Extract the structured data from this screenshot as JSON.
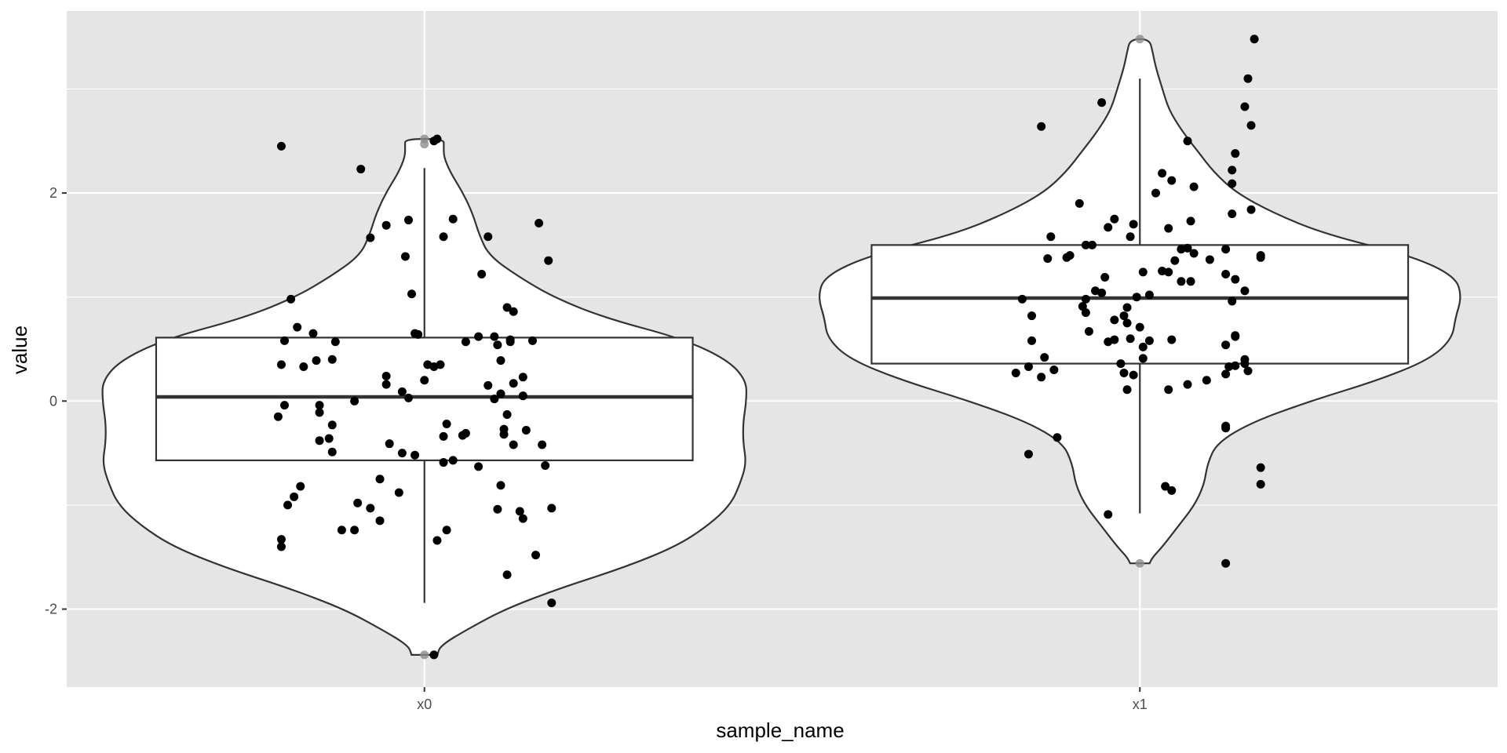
{
  "chart_data": {
    "type": "violin",
    "xlabel": "sample_name",
    "ylabel": "value",
    "categories": [
      "x0",
      "x1"
    ],
    "ylim": [
      -2.75,
      3.75
    ],
    "yticks": [
      -2,
      0,
      2
    ],
    "ytick_labels": [
      "-2",
      "0",
      "2"
    ],
    "grid": true,
    "colors": {
      "panel": "#e5e5e5",
      "gridline": "#ffffff",
      "violin_fill": "#ffffff",
      "stroke": "#333333",
      "point": "#000000",
      "outlier": "#8c8c8c"
    },
    "series": [
      {
        "category": "x0",
        "box": {
          "q1": -0.57,
          "median": 0.04,
          "q3": 0.61,
          "whisker_low": -1.94,
          "whisker_high": 2.24
        },
        "outliers": [
          2.52,
          2.47,
          -2.44
        ],
        "violin_range": [
          -2.44,
          2.52
        ],
        "density_profile": [
          [
            -2.44,
            0.04
          ],
          [
            -2.35,
            0.05
          ],
          [
            -2.2,
            0.13
          ],
          [
            -2.0,
            0.25
          ],
          [
            -1.8,
            0.42
          ],
          [
            -1.6,
            0.62
          ],
          [
            -1.4,
            0.78
          ],
          [
            -1.2,
            0.88
          ],
          [
            -1.0,
            0.95
          ],
          [
            -0.8,
            0.98
          ],
          [
            -0.6,
            1.0
          ],
          [
            -0.4,
            0.99
          ],
          [
            -0.2,
            0.99
          ],
          [
            0.0,
            1.0
          ],
          [
            0.2,
            1.0
          ],
          [
            0.4,
            0.94
          ],
          [
            0.6,
            0.8
          ],
          [
            0.8,
            0.56
          ],
          [
            1.0,
            0.4
          ],
          [
            1.2,
            0.29
          ],
          [
            1.4,
            0.2
          ],
          [
            1.6,
            0.17
          ],
          [
            1.8,
            0.15
          ],
          [
            2.0,
            0.12
          ],
          [
            2.2,
            0.08
          ],
          [
            2.35,
            0.06
          ],
          [
            2.45,
            0.06
          ],
          [
            2.52,
            0.06
          ]
        ],
        "points": [
          [
            -0.45,
            2.45
          ],
          [
            -0.2,
            2.23
          ],
          [
            -0.12,
            1.69
          ],
          [
            -0.17,
            1.57
          ],
          [
            0.03,
            2.5
          ],
          [
            0.04,
            2.52
          ],
          [
            0.09,
            1.75
          ],
          [
            0.06,
            1.58
          ],
          [
            -0.05,
            1.74
          ],
          [
            0.2,
            1.58
          ],
          [
            0.18,
            1.22
          ],
          [
            0.36,
            1.71
          ],
          [
            0.39,
            1.35
          ],
          [
            -0.06,
            1.39
          ],
          [
            -0.04,
            1.03
          ],
          [
            -0.42,
            0.98
          ],
          [
            -0.4,
            0.71
          ],
          [
            -0.35,
            0.65
          ],
          [
            -0.44,
            0.58
          ],
          [
            -0.28,
            0.57
          ],
          [
            -0.38,
            0.33
          ],
          [
            -0.34,
            0.39
          ],
          [
            -0.29,
            0.4
          ],
          [
            -0.45,
            0.35
          ],
          [
            -0.02,
            0.64
          ],
          [
            -0.03,
            0.65
          ],
          [
            0.22,
            0.62
          ],
          [
            0.13,
            0.57
          ],
          [
            0.17,
            0.62
          ],
          [
            0.27,
            0.59
          ],
          [
            0.26,
            0.9
          ],
          [
            0.28,
            0.86
          ],
          [
            0.34,
            0.58
          ],
          [
            0.27,
            0.57
          ],
          [
            0.23,
            0.54
          ],
          [
            0.24,
            0.39
          ],
          [
            -0.12,
            0.24
          ],
          [
            -0.12,
            0.16
          ],
          [
            -0.07,
            0.09
          ],
          [
            -0.05,
            0.03
          ],
          [
            0.01,
            0.35
          ],
          [
            0.03,
            0.33
          ],
          [
            0.05,
            0.35
          ],
          [
            0.0,
            0.2
          ],
          [
            0.2,
            0.15
          ],
          [
            0.31,
            0.23
          ],
          [
            0.28,
            0.17
          ],
          [
            0.31,
            0.05
          ],
          [
            0.22,
            0.02
          ],
          [
            0.24,
            0.07
          ],
          [
            -0.22,
            0.0
          ],
          [
            -0.46,
            -0.15
          ],
          [
            -0.44,
            -0.04
          ],
          [
            -0.33,
            -0.04
          ],
          [
            -0.33,
            -0.11
          ],
          [
            -0.29,
            -0.23
          ],
          [
            -0.3,
            -0.36
          ],
          [
            -0.33,
            -0.38
          ],
          [
            -0.29,
            -0.49
          ],
          [
            -0.11,
            -0.41
          ],
          [
            -0.07,
            -0.5
          ],
          [
            -0.03,
            -0.52
          ],
          [
            0.07,
            -0.22
          ],
          [
            0.06,
            -0.34
          ],
          [
            0.06,
            -0.59
          ],
          [
            0.09,
            -0.57
          ],
          [
            0.13,
            -0.31
          ],
          [
            0.25,
            -0.32
          ],
          [
            0.25,
            -0.27
          ],
          [
            0.32,
            -0.28
          ],
          [
            0.37,
            -0.42
          ],
          [
            0.28,
            -0.42
          ],
          [
            0.26,
            -0.13
          ],
          [
            0.38,
            -0.62
          ],
          [
            0.17,
            -0.63
          ],
          [
            -0.21,
            -0.98
          ],
          [
            -0.17,
            -1.03
          ],
          [
            -0.14,
            -0.75
          ],
          [
            -0.08,
            -0.88
          ],
          [
            -0.39,
            -0.82
          ],
          [
            -0.41,
            -0.92
          ],
          [
            -0.43,
            -1.0
          ],
          [
            -0.45,
            -1.33
          ],
          [
            -0.45,
            -1.4
          ],
          [
            -0.22,
            -1.24
          ],
          [
            -0.26,
            -1.24
          ],
          [
            -0.14,
            -1.15
          ],
          [
            0.04,
            -1.34
          ],
          [
            0.07,
            -1.24
          ],
          [
            0.12,
            -0.33
          ],
          [
            0.3,
            -1.06
          ],
          [
            0.31,
            -1.13
          ],
          [
            0.24,
            -0.81
          ],
          [
            0.23,
            -1.04
          ],
          [
            0.35,
            -1.48
          ],
          [
            0.26,
            -1.67
          ],
          [
            0.4,
            -1.94
          ],
          [
            0.03,
            -2.44
          ],
          [
            0.4,
            -1.03
          ]
        ]
      },
      {
        "category": "x1",
        "box": {
          "q1": 0.36,
          "median": 0.99,
          "q3": 1.5,
          "whisker_low": -1.08,
          "whisker_high": 3.1
        },
        "outliers": [
          3.48,
          -1.56
        ],
        "violin_range": [
          -1.56,
          3.48
        ],
        "density_profile": [
          [
            -1.56,
            0.03
          ],
          [
            -1.5,
            0.04
          ],
          [
            -1.4,
            0.07
          ],
          [
            -1.2,
            0.12
          ],
          [
            -1.0,
            0.17
          ],
          [
            -0.8,
            0.2
          ],
          [
            -0.6,
            0.21
          ],
          [
            -0.4,
            0.24
          ],
          [
            -0.2,
            0.35
          ],
          [
            0.0,
            0.53
          ],
          [
            0.2,
            0.74
          ],
          [
            0.4,
            0.9
          ],
          [
            0.6,
            0.97
          ],
          [
            0.8,
            0.98
          ],
          [
            1.0,
            1.0
          ],
          [
            1.2,
            0.98
          ],
          [
            1.4,
            0.84
          ],
          [
            1.6,
            0.58
          ],
          [
            1.8,
            0.42
          ],
          [
            2.0,
            0.3
          ],
          [
            2.2,
            0.23
          ],
          [
            2.4,
            0.18
          ],
          [
            2.6,
            0.13
          ],
          [
            2.8,
            0.09
          ],
          [
            3.0,
            0.07
          ],
          [
            3.2,
            0.05
          ],
          [
            3.35,
            0.04
          ],
          [
            3.48,
            0.03
          ]
        ],
        "points": [
          [
            0.36,
            3.48
          ],
          [
            0.34,
            3.1
          ],
          [
            -0.12,
            2.87
          ],
          [
            -0.31,
            2.64
          ],
          [
            0.33,
            2.83
          ],
          [
            0.35,
            2.65
          ],
          [
            0.15,
            2.5
          ],
          [
            0.3,
            2.38
          ],
          [
            0.29,
            2.22
          ],
          [
            0.29,
            2.09
          ],
          [
            0.07,
            2.19
          ],
          [
            0.1,
            2.12
          ],
          [
            0.17,
            2.06
          ],
          [
            0.05,
            2.0
          ],
          [
            0.35,
            1.84
          ],
          [
            0.29,
            1.8
          ],
          [
            -0.19,
            1.9
          ],
          [
            -0.08,
            1.75
          ],
          [
            -0.1,
            1.67
          ],
          [
            -0.02,
            1.7
          ],
          [
            -0.03,
            1.58
          ],
          [
            0.09,
            1.66
          ],
          [
            0.16,
            1.73
          ],
          [
            -0.28,
            1.58
          ],
          [
            -0.23,
            1.38
          ],
          [
            -0.22,
            1.4
          ],
          [
            -0.15,
            1.5
          ],
          [
            -0.17,
            1.5
          ],
          [
            -0.29,
            1.37
          ],
          [
            0.13,
            1.46
          ],
          [
            0.15,
            1.47
          ],
          [
            0.17,
            1.42
          ],
          [
            0.22,
            1.36
          ],
          [
            0.11,
            1.35
          ],
          [
            0.07,
            1.25
          ],
          [
            0.13,
            1.15
          ],
          [
            0.16,
            1.15
          ],
          [
            0.09,
            1.24
          ],
          [
            0.27,
            1.46
          ],
          [
            0.27,
            1.22
          ],
          [
            0.3,
            1.17
          ],
          [
            0.33,
            1.06
          ],
          [
            0.38,
            1.4
          ],
          [
            0.38,
            1.38
          ],
          [
            0.29,
            0.96
          ],
          [
            -0.37,
            0.98
          ],
          [
            -0.34,
            0.82
          ],
          [
            -0.17,
            0.98
          ],
          [
            -0.14,
            1.06
          ],
          [
            -0.11,
            1.19
          ],
          [
            -0.12,
            1.04
          ],
          [
            -0.05,
            0.82
          ],
          [
            -0.04,
            0.9
          ],
          [
            -0.01,
            1.0
          ],
          [
            0.01,
            1.24
          ],
          [
            0.03,
            1.02
          ],
          [
            -0.18,
            0.91
          ],
          [
            -0.17,
            0.85
          ],
          [
            -0.08,
            0.78
          ],
          [
            -0.04,
            0.75
          ],
          [
            0.0,
            0.71
          ],
          [
            -0.08,
            0.59
          ],
          [
            -0.1,
            0.57
          ],
          [
            -0.03,
            0.6
          ],
          [
            0.03,
            0.58
          ],
          [
            0.1,
            0.59
          ],
          [
            -0.16,
            0.67
          ],
          [
            0.01,
            0.52
          ],
          [
            0.01,
            0.41
          ],
          [
            -0.34,
            0.58
          ],
          [
            -0.35,
            0.33
          ],
          [
            -0.39,
            0.27
          ],
          [
            -0.31,
            0.23
          ],
          [
            -0.3,
            0.42
          ],
          [
            -0.27,
            0.3
          ],
          [
            -0.06,
            0.36
          ],
          [
            -0.05,
            0.27
          ],
          [
            -0.02,
            0.25
          ],
          [
            -0.04,
            0.11
          ],
          [
            0.09,
            0.11
          ],
          [
            0.15,
            0.16
          ],
          [
            0.21,
            0.2
          ],
          [
            0.27,
            0.26
          ],
          [
            0.28,
            0.33
          ],
          [
            0.3,
            0.34
          ],
          [
            0.27,
            0.54
          ],
          [
            0.3,
            0.62
          ],
          [
            0.3,
            0.63
          ],
          [
            0.33,
            0.4
          ],
          [
            0.34,
            0.29
          ],
          [
            0.33,
            0.36
          ],
          [
            -0.35,
            -0.51
          ],
          [
            -0.26,
            -0.35
          ],
          [
            -0.1,
            -1.09
          ],
          [
            0.08,
            -0.82
          ],
          [
            0.1,
            -0.86
          ],
          [
            0.27,
            -0.24
          ],
          [
            0.27,
            -0.26
          ],
          [
            0.38,
            -0.64
          ],
          [
            0.38,
            -0.8
          ],
          [
            0.27,
            -1.56
          ]
        ]
      }
    ]
  }
}
